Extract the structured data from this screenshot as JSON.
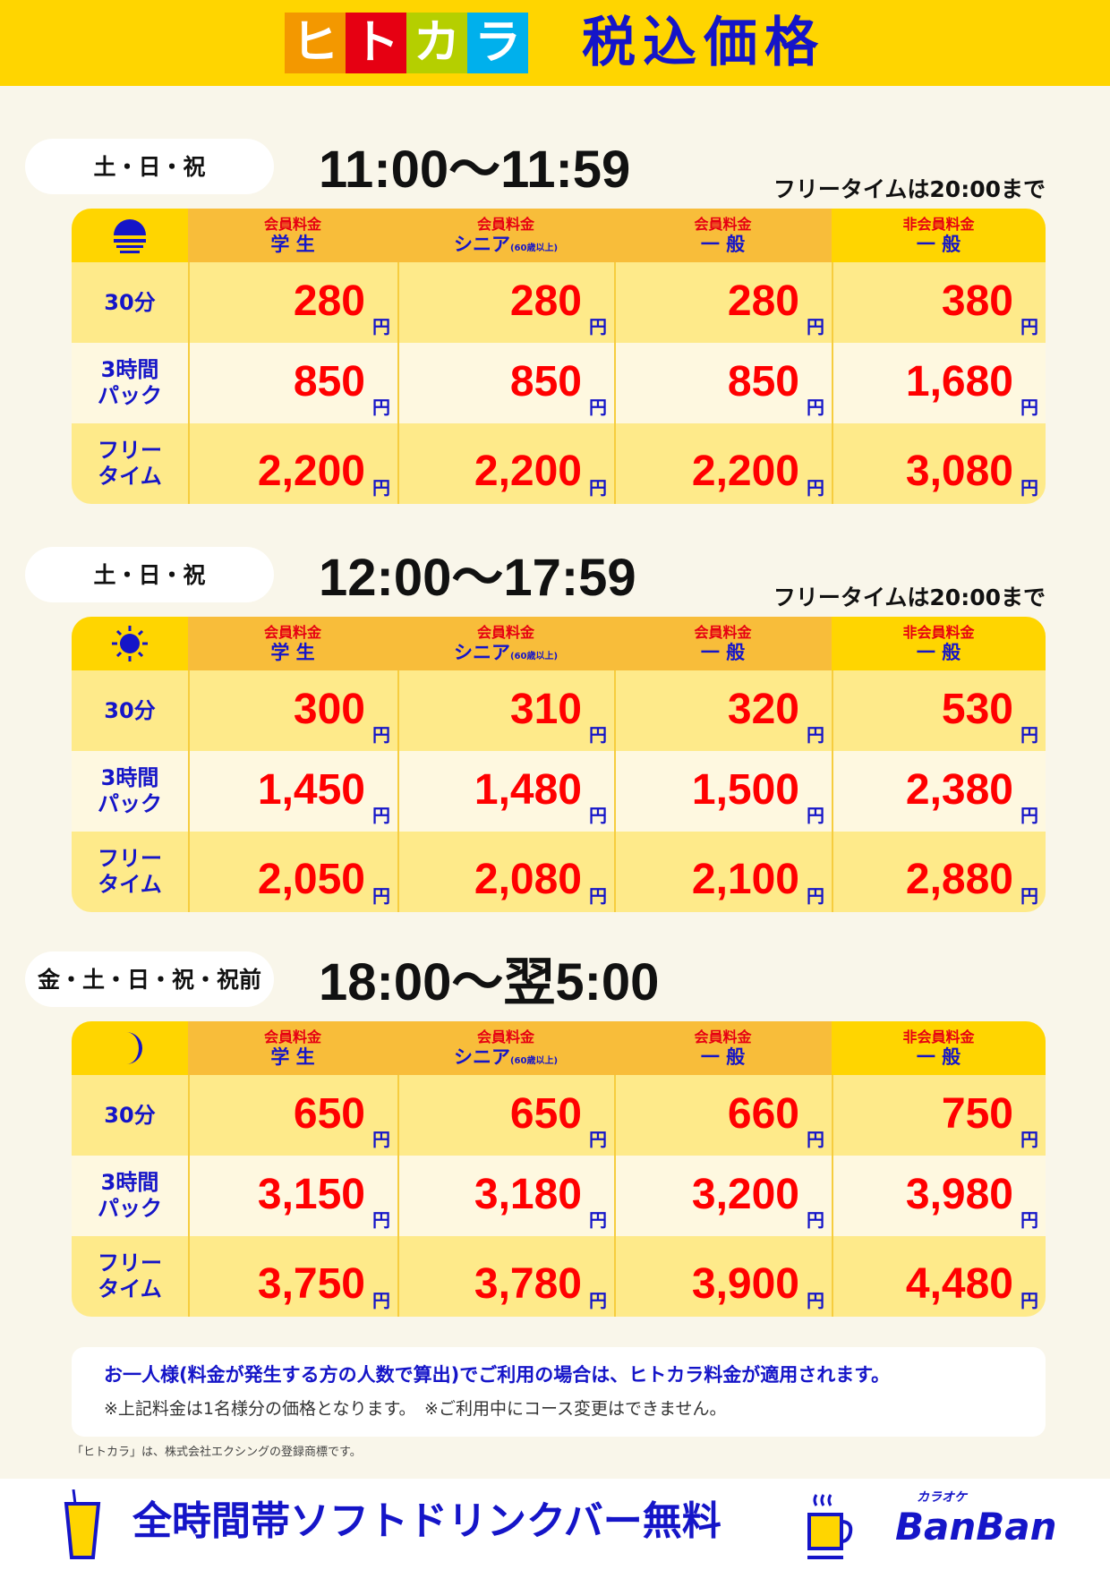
{
  "header": {
    "logo_chars": [
      "ヒ",
      "ト",
      "カ",
      "ラ"
    ],
    "logo_colors": [
      "#f39800",
      "#e60012",
      "#b5cf00",
      "#00b0ec"
    ],
    "title": "税込価格"
  },
  "columns": [
    {
      "top": "会員料金",
      "bottom": "学 生",
      "sub": ""
    },
    {
      "top": "会員料金",
      "bottom": "シニア",
      "sub": "(60歳以上)"
    },
    {
      "top": "会員料金",
      "bottom": "一 般",
      "sub": ""
    },
    {
      "top": "非会員料金",
      "bottom": "一 般",
      "sub": ""
    }
  ],
  "row_labels": [
    "30分",
    "3時間\nパック",
    "フリー\nタイム"
  ],
  "yen": "円",
  "sections": [
    {
      "days": "土・日・祝",
      "time": "11:00〜11:59",
      "note": "フリータイムは20:00まで",
      "icon": "sunrise-icon",
      "prices": [
        [
          "280",
          "280",
          "280",
          "380"
        ],
        [
          "850",
          "850",
          "850",
          "1,680"
        ],
        [
          "2,200",
          "2,200",
          "2,200",
          "3,080"
        ]
      ]
    },
    {
      "days": "土・日・祝",
      "time": "12:00〜17:59",
      "note": "フリータイムは20:00まで",
      "icon": "sun-icon",
      "prices": [
        [
          "300",
          "310",
          "320",
          "530"
        ],
        [
          "1,450",
          "1,480",
          "1,500",
          "2,380"
        ],
        [
          "2,050",
          "2,080",
          "2,100",
          "2,880"
        ]
      ]
    },
    {
      "days": "金・土・日・祝・祝前",
      "time": "18:00〜翌5:00",
      "note": "",
      "icon": "moon-icon",
      "prices": [
        [
          "650",
          "650",
          "660",
          "750"
        ],
        [
          "3,150",
          "3,180",
          "3,200",
          "3,980"
        ],
        [
          "3,750",
          "3,780",
          "3,900",
          "4,480"
        ]
      ]
    }
  ],
  "info": {
    "line1": "お一人様(料金が発生する方の人数で算出)でご利用の場合は、ヒトカラ料金が適用されます。",
    "line2": "※上記料金は1名様分の価格となります。　※ご利用中にコース変更はできません。"
  },
  "trademark": "「ヒトカラ」は、株式会社エクシングの登録商標です。",
  "footer": {
    "text": "全時間帯ソフトドリンクバー無料",
    "brand_small": "カラオケ",
    "brand": "BanBan"
  },
  "colors": {
    "accent_yellow": "#ffd500",
    "price_red": "#ff0000",
    "text_blue": "#1515c8"
  }
}
